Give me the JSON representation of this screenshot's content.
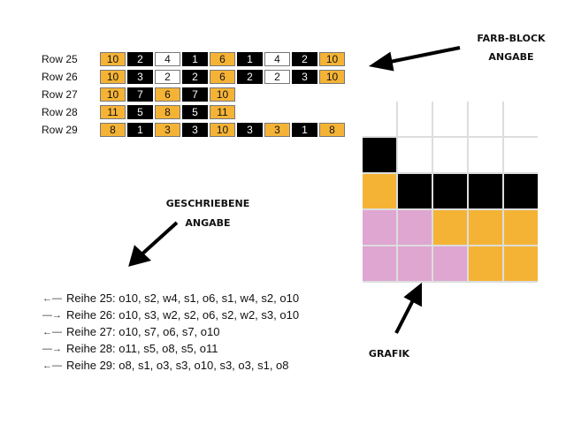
{
  "colors": {
    "o": "#f5b335",
    "s": "#000000",
    "w": "#ffffff",
    "p": "#dea6d1"
  },
  "block_rows": [
    {
      "label": "Row 25",
      "blocks": [
        [
          "o",
          "10"
        ],
        [
          "s",
          "2"
        ],
        [
          "w",
          "4"
        ],
        [
          "s",
          "1"
        ],
        [
          "o",
          "6"
        ],
        [
          "s",
          "1"
        ],
        [
          "w",
          "4"
        ],
        [
          "s",
          "2"
        ],
        [
          "o",
          "10"
        ]
      ]
    },
    {
      "label": "Row 26",
      "blocks": [
        [
          "o",
          "10"
        ],
        [
          "s",
          "3"
        ],
        [
          "w",
          "2"
        ],
        [
          "s",
          "2"
        ],
        [
          "o",
          "6"
        ],
        [
          "s",
          "2"
        ],
        [
          "w",
          "2"
        ],
        [
          "s",
          "3"
        ],
        [
          "o",
          "10"
        ]
      ]
    },
    {
      "label": "Row 27",
      "blocks": [
        [
          "o",
          "10"
        ],
        [
          "s",
          "7"
        ],
        [
          "o",
          "6"
        ],
        [
          "s",
          "7"
        ],
        [
          "o",
          "10"
        ]
      ]
    },
    {
      "label": "Row 28",
      "blocks": [
        [
          "o",
          "11"
        ],
        [
          "s",
          "5"
        ],
        [
          "o",
          "8"
        ],
        [
          "s",
          "5"
        ],
        [
          "o",
          "11"
        ]
      ]
    },
    {
      "label": "Row 29",
      "blocks": [
        [
          "o",
          "8"
        ],
        [
          "s",
          "1"
        ],
        [
          "o",
          "3"
        ],
        [
          "s",
          "3"
        ],
        [
          "o",
          "10"
        ],
        [
          "s",
          "3"
        ],
        [
          "o",
          "3"
        ],
        [
          "s",
          "1"
        ],
        [
          "o",
          "8"
        ]
      ]
    }
  ],
  "labels": {
    "farb_block": "FARB-BLOCK",
    "angabe1": "ANGABE",
    "geschriebene": "GESCHRIEBENE",
    "angabe2": "ANGABE",
    "grafik": "GRAFIK"
  },
  "written": [
    {
      "dir": "left",
      "arrow": "←—",
      "text": "Reihe 25: o10, s2, w4, s1, o6, s1, w4, s2, o10"
    },
    {
      "dir": "right",
      "arrow": "—→",
      "text": "Reihe 26:  o10, s3, w2, s2, o6, s2, w2, s3, o10"
    },
    {
      "dir": "left",
      "arrow": "←—",
      "text": "Reihe 27: o10, s7, o6, s7, o10"
    },
    {
      "dir": "right",
      "arrow": "—→",
      "text": "Reihe 28:  o11, s5, o8, s5, o11"
    },
    {
      "dir": "left",
      "arrow": "←—",
      "text": "Reihe 29: o8, s1, o3, s3, o10, s3, o3, s1, o8"
    }
  ],
  "grafik_grid": [
    [
      "w",
      "w",
      "w",
      "w",
      "w"
    ],
    [
      "s",
      "w",
      "w",
      "w",
      "w"
    ],
    [
      "o",
      "s",
      "s",
      "s",
      "s"
    ],
    [
      "p",
      "p",
      "o",
      "o",
      "o"
    ],
    [
      "p",
      "p",
      "p",
      "o",
      "o"
    ]
  ]
}
